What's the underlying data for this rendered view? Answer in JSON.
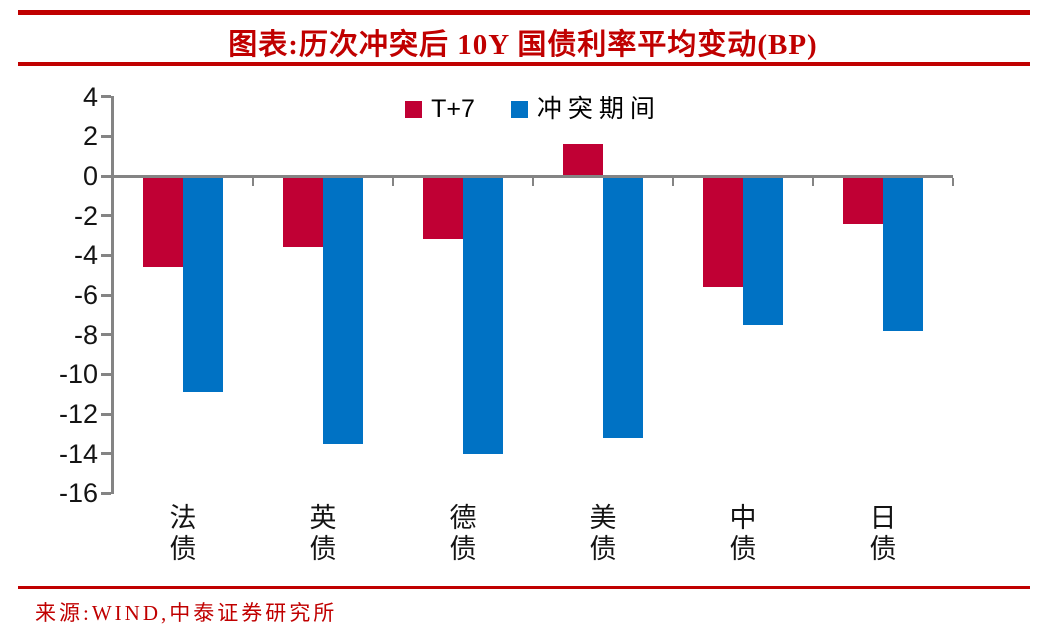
{
  "title": "图表:历次冲突后 10Y 国债利率平均变动(BP)",
  "source": "来源:WIND,中泰证券研究所",
  "colors": {
    "title_red": "#C00000",
    "series_t7": "#C00034",
    "series_conflict": "#0072C4",
    "axis_gray": "#848484"
  },
  "chart_data": {
    "type": "bar",
    "title": "历次冲突后 10Y 国债利率平均变动(BP)",
    "categories": [
      "法债",
      "英债",
      "德债",
      "美债",
      "中债",
      "日债"
    ],
    "series": [
      {
        "name": "T+7",
        "color": "#C00034",
        "values": [
          -4.6,
          -3.6,
          -3.2,
          1.6,
          -5.6,
          -2.4
        ]
      },
      {
        "name": "冲突期间",
        "color": "#0072C4",
        "values": [
          -10.9,
          -13.5,
          -14.0,
          -13.2,
          -7.5,
          -7.8
        ]
      }
    ],
    "xlabel": "",
    "ylabel": "",
    "unit": "BP",
    "ylim": [
      -16,
      4
    ],
    "yticks": [
      4,
      2,
      0,
      -2,
      -4,
      -6,
      -8,
      -10,
      -12,
      -14,
      -16
    ],
    "grid": false,
    "legend_position": "top-center"
  }
}
